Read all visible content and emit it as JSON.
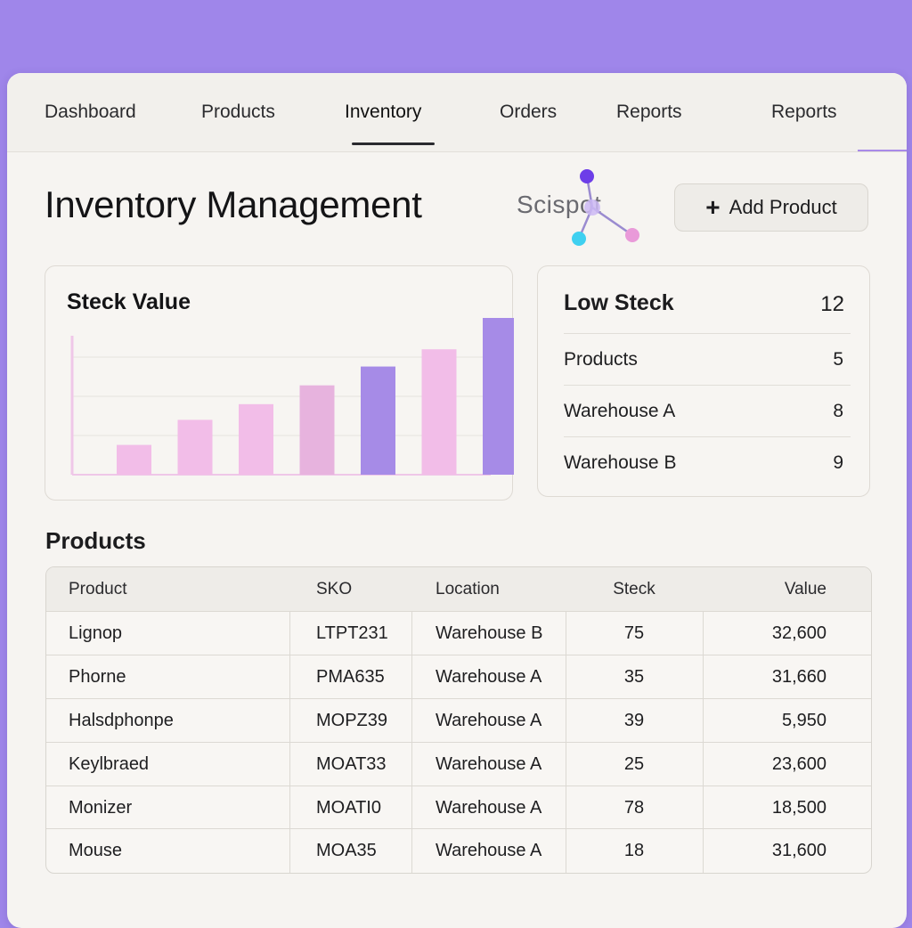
{
  "nav": {
    "items": [
      {
        "label": "Dashboard"
      },
      {
        "label": "Products"
      },
      {
        "label": "Inventory"
      },
      {
        "label": "Orders"
      },
      {
        "label": "Reports"
      },
      {
        "label": "Reports"
      }
    ],
    "active_index": 2
  },
  "header": {
    "title": "Inventory Management",
    "logo_text": "Scispot",
    "add_button_label": "Add Product"
  },
  "chart_card": {
    "title": "Steck Value"
  },
  "chart_data": {
    "type": "bar",
    "title": "Steck Value",
    "xlabel": "",
    "ylabel": "",
    "values": [
      0.19,
      0.35,
      0.45,
      0.57,
      0.69,
      0.8,
      1.0
    ],
    "colors": [
      "#f2bde8",
      "#f2bde8",
      "#f2bde8",
      "#e7b3de",
      "#a68be7",
      "#f2bde8",
      "#a68be7"
    ],
    "grid": true,
    "legend": "none"
  },
  "low_stock": {
    "title": "Low Steck",
    "count": "12",
    "rows": [
      {
        "label": "Products",
        "value": "5"
      },
      {
        "label": "Warehouse A",
        "value": "8"
      },
      {
        "label": "Warehouse B",
        "value": "9"
      }
    ]
  },
  "products": {
    "section_title": "Products",
    "columns": [
      "Product",
      "SKO",
      "Location",
      "Steck",
      "Value"
    ],
    "rows": [
      {
        "product": "Lignop",
        "sku": "LTPT231",
        "location": "Warehouse B",
        "stock": "75",
        "value": "32,600"
      },
      {
        "product": "Phorne",
        "sku": "PMA635",
        "location": "Warehouse A",
        "stock": "35",
        "value": "31,660"
      },
      {
        "product": "Halsdphonpe",
        "sku": "MOPZ39",
        "location": "Warehouse A",
        "stock": "39",
        "value": "5,950"
      },
      {
        "product": "Keylbraed",
        "sku": "MOAT33",
        "location": "Warehouse A",
        "stock": "25",
        "value": "23,600"
      },
      {
        "product": "Monizer",
        "sku": "MOATI0",
        "location": "Warehouse A",
        "stock": "78",
        "value": "18,500"
      },
      {
        "product": "Mouse",
        "sku": "MOA35",
        "location": "Warehouse A",
        "stock": "18",
        "value": "31,600"
      }
    ]
  }
}
